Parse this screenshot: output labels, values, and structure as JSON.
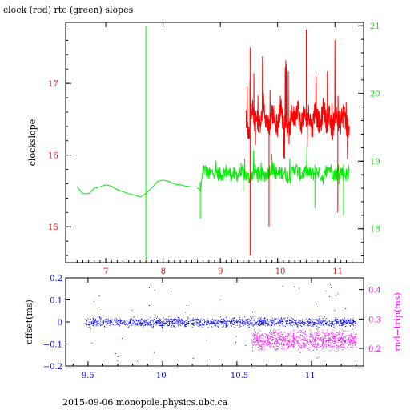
{
  "title": "clock (red) rtc (green) slopes",
  "footer": "2015-09-06  monopole.physics.ubc.ca",
  "colors": {
    "red": "#ff0000",
    "green": "#00ee00",
    "blue": "#0000ff",
    "magenta": "#ff00ff",
    "axis": "#000000"
  },
  "chart_data": [
    {
      "type": "line",
      "title": "clock (red) rtc (green) slopes",
      "ylabel": "clockslope",
      "xlim": [
        6.3,
        11.5
      ],
      "xticks": [
        "7",
        "8",
        "9",
        "10",
        "11"
      ],
      "ylim_left": [
        14.5,
        17.85
      ],
      "yticks_left": [
        "15",
        "16",
        "17"
      ],
      "ylim_right": [
        17.5,
        21.05
      ],
      "yticks_right": [
        "18",
        "19",
        "20",
        "21"
      ],
      "series": [
        {
          "color": "red",
          "axis": "left",
          "x": [
            9.45,
            9.5,
            9.55,
            9.6,
            9.65,
            9.7,
            9.75,
            9.8,
            9.85,
            9.9,
            9.95,
            10.0,
            10.05,
            10.1,
            10.15,
            10.2,
            10.25,
            10.3,
            10.35,
            10.4,
            10.45,
            10.5,
            10.55,
            10.6,
            10.65,
            10.7,
            10.75,
            10.8,
            10.85,
            10.9,
            10.95,
            11.0,
            11.05,
            11.1,
            11.15,
            11.2,
            11.25
          ],
          "y": [
            16.55,
            16.3,
            16.7,
            16.45,
            16.5,
            16.4,
            16.75,
            16.5,
            16.35,
            16.6,
            16.5,
            16.4,
            16.7,
            16.45,
            16.55,
            16.3,
            16.6,
            16.5,
            16.7,
            16.4,
            16.55,
            16.45,
            16.6,
            16.35,
            16.65,
            16.5,
            16.4,
            16.7,
            16.45,
            16.55,
            16.3,
            16.6,
            16.5,
            16.45,
            16.65,
            16.4,
            16.4
          ]
        },
        {
          "color": "green",
          "axis": "right",
          "x": [
            6.5,
            6.6,
            6.7,
            6.8,
            6.9,
            7.0,
            7.1,
            7.2,
            7.3,
            7.4,
            7.5,
            7.6,
            7.7,
            7.8,
            7.9,
            8.0,
            8.1,
            8.2,
            8.3,
            8.4,
            8.5,
            8.6,
            8.65,
            8.7,
            8.8,
            8.9,
            9.0,
            9.1,
            9.2,
            9.3,
            9.4,
            9.5,
            9.6,
            9.7,
            9.8,
            9.9,
            10.0,
            10.1,
            10.2,
            10.3,
            10.4,
            10.5,
            10.6,
            10.7,
            10.8,
            10.9,
            11.0,
            11.1,
            11.2,
            11.25
          ],
          "y": [
            18.62,
            18.52,
            18.52,
            18.6,
            18.62,
            18.65,
            18.63,
            18.58,
            18.55,
            18.52,
            18.5,
            18.47,
            18.52,
            18.6,
            18.7,
            18.72,
            18.7,
            18.66,
            18.65,
            18.63,
            18.62,
            18.62,
            18.55,
            18.9,
            18.8,
            18.85,
            18.8,
            18.85,
            18.8,
            18.8,
            18.82,
            18.75,
            18.85,
            18.8,
            18.8,
            18.9,
            18.8,
            18.85,
            18.75,
            18.9,
            18.8,
            18.85,
            18.8,
            18.85,
            18.75,
            18.9,
            18.8,
            18.85,
            18.8,
            18.85
          ]
        }
      ]
    },
    {
      "type": "scatter",
      "ylabel": "offset(ms)",
      "ylabel_right": "rnd−trip(ms)",
      "xlim": [
        9.35,
        11.35
      ],
      "xticks": [
        "9.5",
        "10",
        "10.5",
        "11"
      ],
      "ylim_left": [
        -0.2,
        0.2
      ],
      "yticks_left": [
        "0.2",
        "0.1",
        "0",
        "−0.1",
        "−0.2"
      ],
      "ylim_right": [
        0.14,
        0.44
      ],
      "yticks_right": [
        "0.4",
        "0.3",
        "0.2"
      ],
      "series": [
        {
          "color": "blue",
          "axis": "left",
          "x_range": [
            9.48,
            11.3
          ],
          "y_center": 0.0,
          "y_spread": 0.02
        },
        {
          "color": "magenta",
          "axis": "right",
          "x_range": [
            10.6,
            11.3
          ],
          "y_center": 0.23,
          "y_spread": 0.04
        }
      ]
    }
  ]
}
